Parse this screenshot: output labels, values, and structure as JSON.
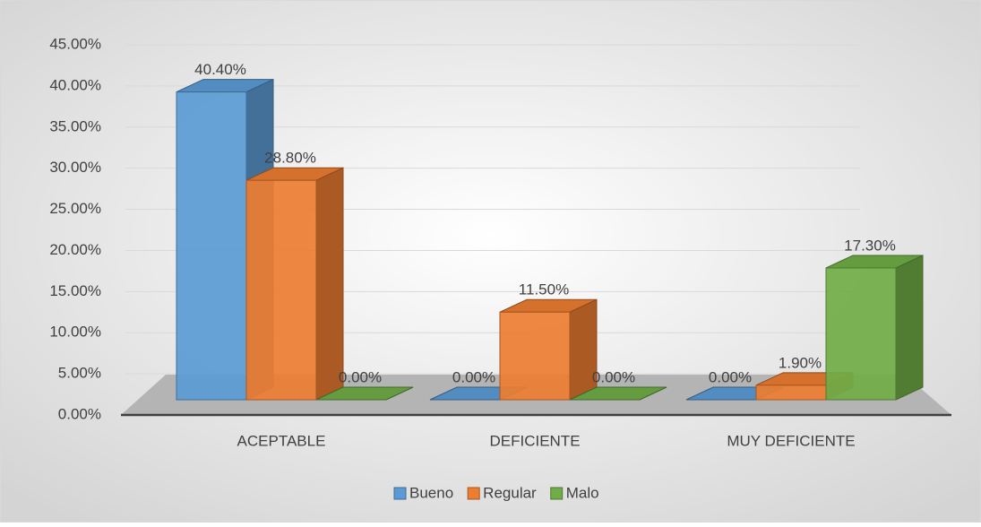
{
  "chart_data": {
    "type": "bar3d",
    "categories": [
      "ACEPTABLE",
      "DEFICIENTE",
      "MUY DEFICIENTE"
    ],
    "series": [
      {
        "name": "Bueno",
        "color": "#5b9bd5",
        "values": [
          40.4,
          0,
          0
        ],
        "value_labels": [
          "40.40%",
          "0.00%",
          "0.00%"
        ]
      },
      {
        "name": "Regular",
        "color": "#ed7d31",
        "values": [
          28.8,
          11.5,
          1.9
        ],
        "value_labels": [
          "28.80%",
          "11.50%",
          "1.90%"
        ]
      },
      {
        "name": "Malo",
        "color": "#70ad47",
        "values": [
          0,
          0,
          17.3
        ],
        "value_labels": [
          "0.00%",
          "0.00%",
          "17.30%"
        ]
      }
    ],
    "ylim": [
      0,
      45
    ],
    "yticks": [
      {
        "value": 0,
        "label": "0.00%"
      },
      {
        "value": 5,
        "label": "5.00%"
      },
      {
        "value": 10,
        "label": "10.00%"
      },
      {
        "value": 15,
        "label": "15.00%"
      },
      {
        "value": 20,
        "label": "20.00%"
      },
      {
        "value": 25,
        "label": "25.00%"
      },
      {
        "value": 30,
        "label": "30.00%"
      },
      {
        "value": 35,
        "label": "35.00%"
      },
      {
        "value": 40,
        "label": "40.00%"
      },
      {
        "value": 45,
        "label": "45.00%"
      }
    ],
    "grid": true,
    "legend": "bottom"
  }
}
